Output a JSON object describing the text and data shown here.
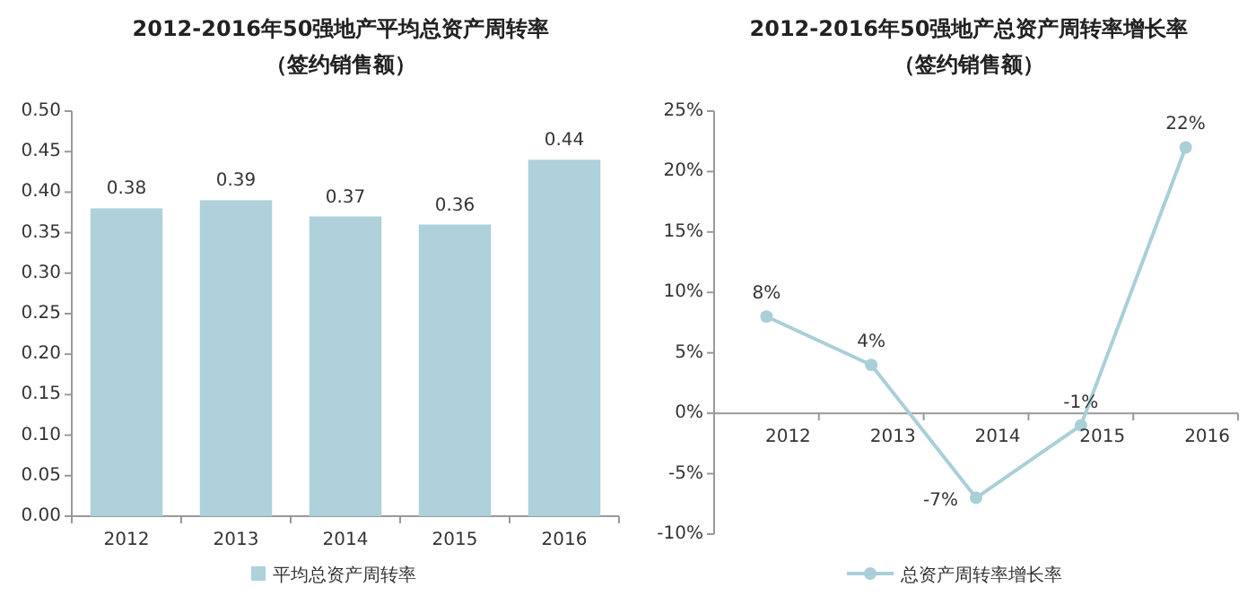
{
  "chart_data": [
    {
      "type": "bar",
      "title": "2012-2016年50强地产平均总资产周转率",
      "subtitle": "（签约销售额）",
      "categories": [
        "2012",
        "2013",
        "2014",
        "2015",
        "2016"
      ],
      "series": [
        {
          "name": "平均总资产周转率",
          "color": "#aed1db",
          "values": [
            0.38,
            0.39,
            0.37,
            0.36,
            0.44
          ]
        }
      ],
      "ylim": [
        0,
        0.5
      ],
      "yticks": [
        {
          "value": 0,
          "label": "0.00"
        },
        {
          "value": 0.05,
          "label": "0.05"
        },
        {
          "value": 0.1,
          "label": "0.10"
        },
        {
          "value": 0.15,
          "label": "0.15"
        },
        {
          "value": 0.2,
          "label": "0.20"
        },
        {
          "value": 0.25,
          "label": "0.25"
        },
        {
          "value": 0.3,
          "label": "0.30"
        },
        {
          "value": 0.35,
          "label": "0.35"
        },
        {
          "value": 0.4,
          "label": "0.40"
        },
        {
          "value": 0.45,
          "label": "0.45"
        },
        {
          "value": 0.5,
          "label": "0.50"
        }
      ],
      "data_labels": true,
      "legend": "bottom",
      "grid": false
    },
    {
      "type": "line",
      "title": "2012-2016年50强地产总资产周转率增长率",
      "subtitle": "（签约销售额）",
      "categories": [
        "2012",
        "2013",
        "2014",
        "2015",
        "2016"
      ],
      "series": [
        {
          "name": "总资产周转率增长率",
          "color": "#a9cfd9",
          "values": [
            8,
            4,
            -7,
            -1,
            22
          ]
        }
      ],
      "ylim": [
        -10,
        25
      ],
      "yticks": [
        {
          "value": -10,
          "label": "-10%"
        },
        {
          "value": -5,
          "label": "-5%"
        },
        {
          "value": 0,
          "label": "0%"
        },
        {
          "value": 5,
          "label": "5%"
        },
        {
          "value": 10,
          "label": "10%"
        },
        {
          "value": 15,
          "label": "15%"
        },
        {
          "value": 20,
          "label": "20%"
        },
        {
          "value": 25,
          "label": "25%"
        }
      ],
      "value_labels": [
        "8%",
        "4%",
        "-7%",
        "-1%",
        "22%"
      ],
      "marker": "circle",
      "legend": "bottom",
      "grid": false
    }
  ]
}
